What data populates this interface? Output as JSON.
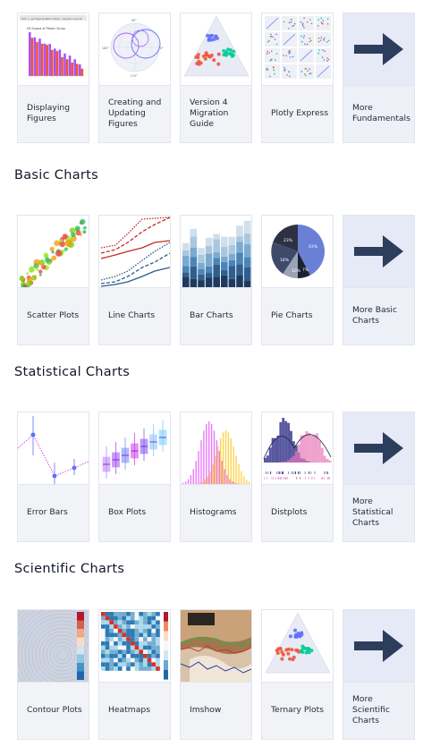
{
  "sections": {
    "fundamentals": {
      "cards": [
        {
          "label": "Displaying Figures"
        },
        {
          "label": "Creating and Updating Figures"
        },
        {
          "label": "Version 4 Migration Guide"
        },
        {
          "label": "Plotly Express"
        },
        {
          "label": "More Fundamentals"
        }
      ]
    },
    "basic": {
      "title": "Basic Charts",
      "cards": [
        {
          "label": "Scatter Plots"
        },
        {
          "label": "Line Charts"
        },
        {
          "label": "Bar Charts"
        },
        {
          "label": "Pie Charts"
        },
        {
          "label": "More Basic Charts"
        }
      ]
    },
    "statistical": {
      "title": "Statistical Charts",
      "cards": [
        {
          "label": "Error Bars"
        },
        {
          "label": "Box Plots"
        },
        {
          "label": "Histograms"
        },
        {
          "label": "Distplots"
        },
        {
          "label": "More Statistical Charts"
        }
      ]
    },
    "scientific": {
      "title": "Scientific Charts",
      "cards": [
        {
          "label": "Contour Plots"
        },
        {
          "label": "Heatmaps"
        },
        {
          "label": "Imshow"
        },
        {
          "label": "Ternary Plots"
        },
        {
          "label": "More Scientific Charts"
        }
      ]
    }
  },
  "thumbnail_text": {
    "displaying_figures": {
      "title": "US Export of Plastic Scrap",
      "browser_bar": "Plot | - go.Figure(data=data) - Jupyter Layout"
    },
    "polar": {
      "t0": "0°",
      "t90": "90°",
      "t180": "180°",
      "t270": "270°"
    },
    "pie": {
      "s1": "43%",
      "s2": "23%",
      "s3": "18%",
      "s4": "10%",
      "s5": "7%"
    }
  },
  "colors": {
    "accent": "#2c3e5c",
    "card_bg": "#f2f3f7",
    "more_bg": "#e6e9f6",
    "plotly_purple": "#636efa",
    "plotly_red": "#ef553b",
    "plotly_green": "#00cc96"
  },
  "icons": {
    "more": "arrow-right-icon"
  }
}
